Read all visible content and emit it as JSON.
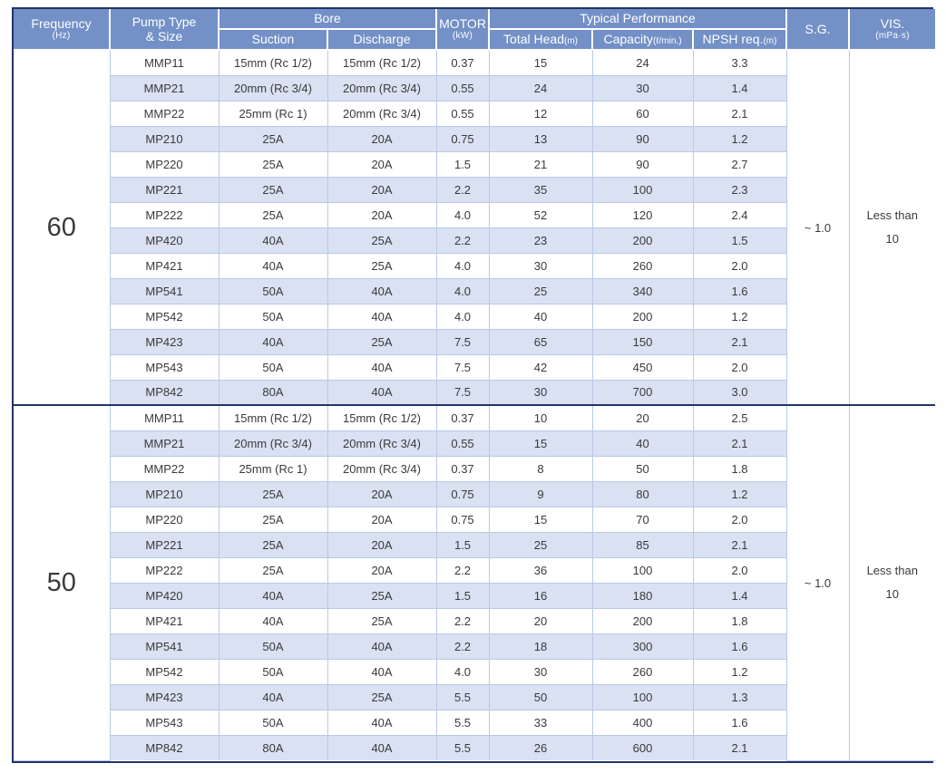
{
  "table": {
    "header": {
      "frequency": {
        "label": "Frequency",
        "unit": "(Hz)"
      },
      "pump_type": {
        "line1": "Pump Type",
        "line2": "& Size"
      },
      "bore": {
        "label": "Bore",
        "suction": "Suction",
        "discharge": "Discharge"
      },
      "motor": {
        "label": "MOTOR",
        "unit": "(kW)"
      },
      "performance": {
        "label": "Typical Performance",
        "total_head": {
          "label": "Total Head",
          "unit": "(m)"
        },
        "capacity": {
          "label": "Capacity",
          "unit": "(ℓ/min.)"
        },
        "npsh": {
          "label": "NPSH req.",
          "unit": "(m)"
        }
      },
      "sg": {
        "label": "S.G."
      },
      "vis": {
        "label": "VIS.",
        "unit": "(mPa·s)"
      }
    },
    "sections": [
      {
        "frequency": "60",
        "sg": "~ 1.0",
        "vis_line1": "Less than",
        "vis_line2": "10",
        "rows": [
          [
            "MMP11",
            "15mm (Rc 1/2)",
            "15mm (Rc 1/2)",
            "0.37",
            "15",
            "24",
            "3.3"
          ],
          [
            "MMP21",
            "20mm (Rc 3/4)",
            "20mm (Rc 3/4)",
            "0.55",
            "24",
            "30",
            "1.4"
          ],
          [
            "MMP22",
            "25mm (Rc 1)",
            "20mm (Rc 3/4)",
            "0.55",
            "12",
            "60",
            "2.1"
          ],
          [
            "MP210",
            "25A",
            "20A",
            "0.75",
            "13",
            "90",
            "1.2"
          ],
          [
            "MP220",
            "25A",
            "20A",
            "1.5",
            "21",
            "90",
            "2.7"
          ],
          [
            "MP221",
            "25A",
            "20A",
            "2.2",
            "35",
            "100",
            "2.3"
          ],
          [
            "MP222",
            "25A",
            "20A",
            "4.0",
            "52",
            "120",
            "2.4"
          ],
          [
            "MP420",
            "40A",
            "25A",
            "2.2",
            "23",
            "200",
            "1.5"
          ],
          [
            "MP421",
            "40A",
            "25A",
            "4.0",
            "30",
            "260",
            "2.0"
          ],
          [
            "MP541",
            "50A",
            "40A",
            "4.0",
            "25",
            "340",
            "1.6"
          ],
          [
            "MP542",
            "50A",
            "40A",
            "4.0",
            "40",
            "200",
            "1.2"
          ],
          [
            "MP423",
            "40A",
            "25A",
            "7.5",
            "65",
            "150",
            "2.1"
          ],
          [
            "MP543",
            "50A",
            "40A",
            "7.5",
            "42",
            "450",
            "2.0"
          ],
          [
            "MP842",
            "80A",
            "40A",
            "7.5",
            "30",
            "700",
            "3.0"
          ]
        ]
      },
      {
        "frequency": "50",
        "sg": "~ 1.0",
        "vis_line1": "Less than",
        "vis_line2": "10",
        "rows": [
          [
            "MMP11",
            "15mm (Rc 1/2)",
            "15mm (Rc 1/2)",
            "0.37",
            "10",
            "20",
            "2.5"
          ],
          [
            "MMP21",
            "20mm (Rc 3/4)",
            "20mm (Rc 3/4)",
            "0.55",
            "15",
            "40",
            "2.1"
          ],
          [
            "MMP22",
            "25mm (Rc 1)",
            "20mm (Rc 3/4)",
            "0.37",
            "8",
            "50",
            "1.8"
          ],
          [
            "MP210",
            "25A",
            "20A",
            "0.75",
            "9",
            "80",
            "1.2"
          ],
          [
            "MP220",
            "25A",
            "20A",
            "0.75",
            "15",
            "70",
            "2.0"
          ],
          [
            "MP221",
            "25A",
            "20A",
            "1.5",
            "25",
            "85",
            "2.1"
          ],
          [
            "MP222",
            "25A",
            "20A",
            "2.2",
            "36",
            "100",
            "2.0"
          ],
          [
            "MP420",
            "40A",
            "25A",
            "1.5",
            "16",
            "180",
            "1.4"
          ],
          [
            "MP421",
            "40A",
            "25A",
            "2.2",
            "20",
            "200",
            "1.8"
          ],
          [
            "MP541",
            "50A",
            "40A",
            "2.2",
            "18",
            "300",
            "1.6"
          ],
          [
            "MP542",
            "50A",
            "40A",
            "4.0",
            "30",
            "260",
            "1.2"
          ],
          [
            "MP423",
            "40A",
            "25A",
            "5.5",
            "50",
            "100",
            "1.3"
          ],
          [
            "MP543",
            "50A",
            "40A",
            "5.5",
            "33",
            "400",
            "1.6"
          ],
          [
            "MP842",
            "80A",
            "40A",
            "5.5",
            "26",
            "600",
            "2.1"
          ]
        ]
      }
    ]
  },
  "colors": {
    "header_bg": "#7390c7",
    "stripe_bg": "#d9e1f2",
    "border_light": "#b9c9e7",
    "border_dark": "#23346a",
    "header_text": "#ffffff",
    "body_text": "#3a3a3a"
  }
}
